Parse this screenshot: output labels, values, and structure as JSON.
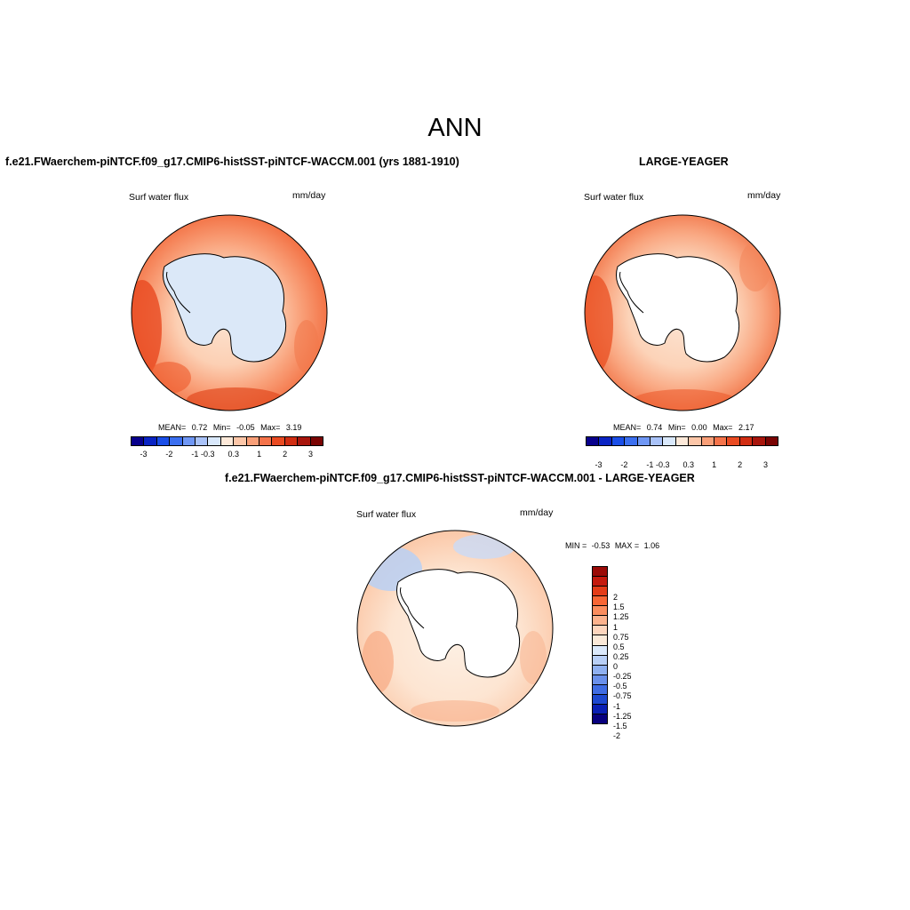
{
  "title": "ANN",
  "colors": {
    "diverging_h": [
      "#08008c",
      "#0a24c4",
      "#1a4ee8",
      "#3b6ff0",
      "#6f97f5",
      "#a9c2f8",
      "#d9e8fb",
      "#fde9d9",
      "#fcc6a8",
      "#f99f78",
      "#f5734a",
      "#ea4b22",
      "#d12d12",
      "#a8150c",
      "#7a0403"
    ],
    "diverging_v": [
      "#9a0a07",
      "#c41a0e",
      "#e43c18",
      "#f86635",
      "#fb8d5e",
      "#fcb28d",
      "#fdd5bd",
      "#fbe9d8",
      "#dbe9fb",
      "#b8cff6",
      "#8fb0f0",
      "#6a90ea",
      "#3f6ce2",
      "#1d48cf",
      "#0a1fb3",
      "#08007e"
    ]
  },
  "panels": {
    "left": {
      "title": "f.e21.FWaerchem-piNTCF.f09_g17.CMIP6-histSST-piNTCF-WACCM.001 (yrs 1881-1910)",
      "variable": "Surf water flux",
      "units": "mm/day",
      "stats_label_mean": "MEAN=",
      "stats_mean": "0.72",
      "stats_label_min": "Min=",
      "stats_min": "-0.05",
      "stats_label_max": "Max=",
      "stats_max": "3.19",
      "ticks": [
        "-3",
        "-2",
        "-1",
        "-0.3",
        "0.3",
        "1",
        "2",
        "3"
      ]
    },
    "right": {
      "title": "LARGE-YEAGER",
      "variable": "Surf water flux",
      "units": "mm/day",
      "stats_label_mean": "MEAN=",
      "stats_mean": "0.74",
      "stats_label_min": "Min=",
      "stats_min": "0.00",
      "stats_label_max": "Max=",
      "stats_max": "2.17",
      "ticks": [
        "-3",
        "-2",
        "-1",
        "-0.3",
        "0.3",
        "1",
        "2",
        "3"
      ]
    },
    "bottom": {
      "title": "f.e21.FWaerchem-piNTCF.f09_g17.CMIP6-histSST-piNTCF-WACCM.001 - LARGE-YEAGER",
      "variable": "Surf water flux",
      "units": "mm/day",
      "minmax_label_min": "MIN =",
      "minmax_min": "-0.53",
      "minmax_label_max": "MAX =",
      "minmax_max": "1.06",
      "ticks": [
        "2",
        "1.5",
        "1.25",
        "1",
        "0.75",
        "0.5",
        "0.25",
        "0",
        "-0.25",
        "-0.5",
        "-0.75",
        "-1",
        "-1.25",
        "-1.5",
        "-2"
      ]
    }
  }
}
